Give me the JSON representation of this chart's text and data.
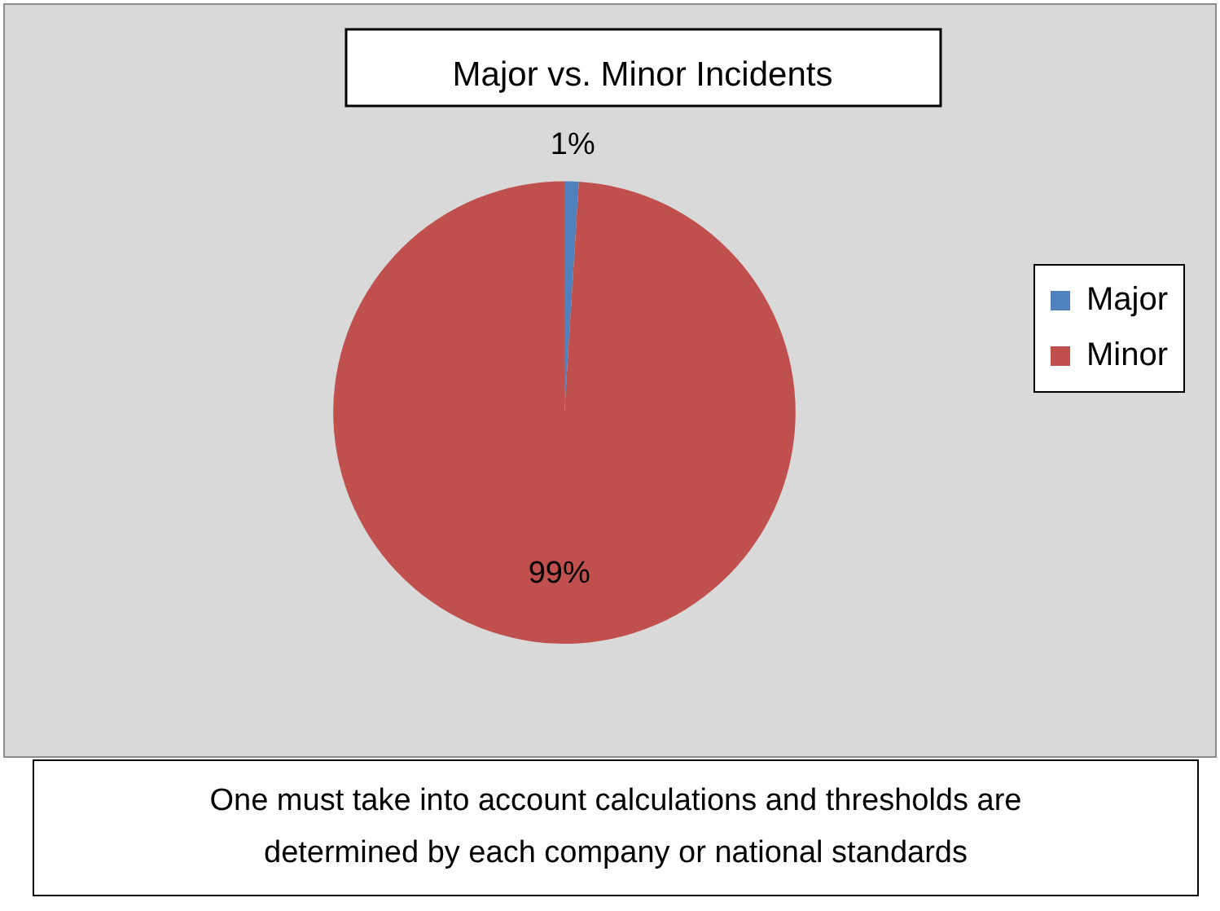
{
  "chart_data": {
    "type": "pie",
    "title": "Major vs. Minor Incidents",
    "categories": [
      "Major",
      "Minor"
    ],
    "values": [
      1,
      99
    ],
    "colors": [
      "#4f81bd",
      "#c0504d"
    ],
    "value_labels": [
      "1%",
      "99%"
    ],
    "legend": "right",
    "annotations": [
      "One must take into account calculations and thresholds are determined by each company or national standards"
    ]
  }
}
